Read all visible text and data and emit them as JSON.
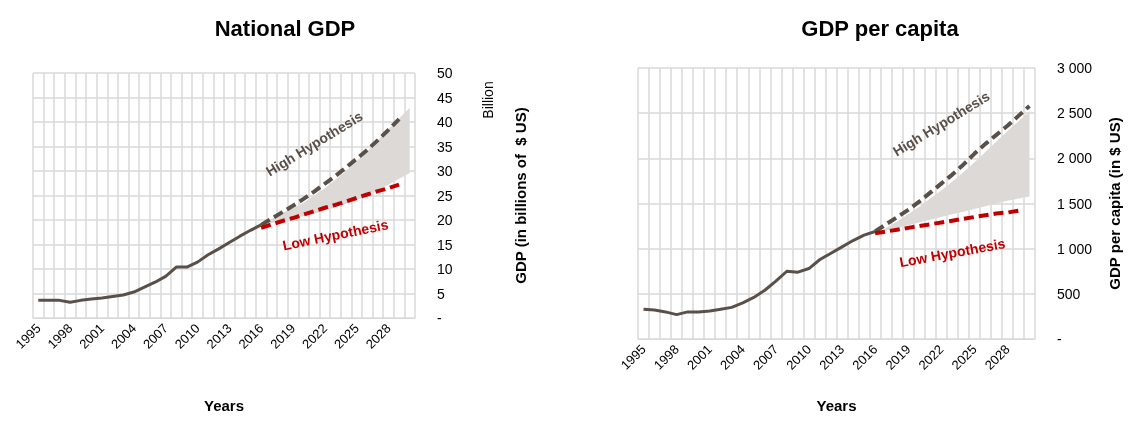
{
  "chart_data": [
    {
      "type": "line",
      "title": "National GDP",
      "xlabel": "Years",
      "ylabel": "GDP (in billions of  $ US)",
      "annotations": [
        "Billion"
      ],
      "categories": [
        "1995",
        null,
        null,
        "1998",
        null,
        null,
        "2001",
        null,
        null,
        "2004",
        null,
        null,
        "2007",
        null,
        null,
        "2010",
        null,
        null,
        "2013",
        null,
        null,
        "2016",
        null,
        null,
        "2019",
        null,
        null,
        "2022",
        null,
        null,
        "2025",
        null,
        null,
        "2028",
        null,
        null
      ],
      "ylim": [
        0,
        50
      ],
      "yticks": [
        {
          "value": 0,
          "label": "-"
        },
        5,
        10,
        15,
        20,
        25,
        30,
        35,
        40,
        45,
        50
      ],
      "grid": true,
      "legend": false,
      "marker": "none",
      "series": [
        {
          "type": "area",
          "color": "#dcd9d6",
          "values": [
            null,
            null,
            null,
            null,
            null,
            null,
            null,
            null,
            null,
            null,
            null,
            null,
            null,
            null,
            null,
            null,
            null,
            null,
            null,
            null,
            null,
            null,
            null,
            null,
            null,
            null,
            null,
            null,
            null,
            null,
            null,
            null,
            null,
            null,
            null,
            null
          ],
          "lower": [
            null,
            null,
            null,
            null,
            null,
            null,
            null,
            null,
            null,
            null,
            null,
            null,
            null,
            null,
            null,
            null,
            null,
            null,
            null,
            null,
            null,
            19,
            19.4,
            19.9,
            20.3,
            20.8,
            21.3,
            21.9,
            22.6,
            23.3,
            24.1,
            25,
            26.1,
            27.2,
            28.4,
            29.6
          ],
          "upper": [
            null,
            null,
            null,
            null,
            null,
            null,
            null,
            null,
            null,
            null,
            null,
            null,
            null,
            null,
            null,
            null,
            null,
            null,
            null,
            null,
            null,
            19,
            20.2,
            21.5,
            22.4,
            23.5,
            25,
            26.5,
            28.2,
            30,
            32,
            34,
            36.2,
            38.5,
            40.7,
            42.9
          ]
        },
        {
          "color": "#595049",
          "line_style": "solid",
          "values": [
            3.6,
            3.6,
            3.6,
            3.2,
            3.6,
            3.9,
            4.1,
            4.4,
            4.7,
            5.3,
            6.3,
            7.3,
            8.5,
            10.4,
            10.4,
            11.4,
            12.9,
            14.1,
            15.4,
            16.7,
            17.9,
            19,
            null,
            null,
            null,
            null,
            null,
            null,
            null,
            null,
            null,
            null,
            null,
            null,
            null,
            null
          ]
        },
        {
          "name": "High Hypothesis",
          "color": "#595049",
          "line_style": "dashed",
          "values": [
            null,
            null,
            null,
            null,
            null,
            null,
            null,
            null,
            null,
            null,
            null,
            null,
            null,
            null,
            null,
            null,
            null,
            null,
            null,
            null,
            null,
            19,
            20.3,
            21.6,
            22.9,
            24.3,
            25.8,
            27.4,
            29,
            30.7,
            32.5,
            34.3,
            36.3,
            38.4,
            40.6,
            null
          ]
        },
        {
          "name": "Low Hypothesis",
          "color": "#c00000",
          "line_style": "dashed",
          "values": [
            null,
            null,
            null,
            null,
            null,
            null,
            null,
            null,
            null,
            null,
            null,
            null,
            null,
            null,
            null,
            null,
            null,
            null,
            null,
            null,
            null,
            18.4,
            19.1,
            19.8,
            20.4,
            21.1,
            21.8,
            22.5,
            23.1,
            23.8,
            24.5,
            25.2,
            25.9,
            26.5,
            27.2,
            null
          ]
        }
      ]
    },
    {
      "type": "line",
      "title": "GDP per capita",
      "xlabel": "Years",
      "ylabel": "GDP per capita (in $ US)",
      "categories": [
        "1995",
        null,
        null,
        "1998",
        null,
        null,
        "2001",
        null,
        null,
        "2004",
        null,
        null,
        "2007",
        null,
        null,
        "2010",
        null,
        null,
        "2013",
        null,
        null,
        "2016",
        null,
        null,
        "2019",
        null,
        null,
        "2022",
        null,
        null,
        "2025",
        null,
        null,
        "2028",
        null,
        null
      ],
      "ylim": [
        0,
        3000
      ],
      "yticks": [
        {
          "value": 0,
          "label": "-"
        },
        {
          "value": 500,
          "label": "500"
        },
        {
          "value": 1000,
          "label": "1 000"
        },
        {
          "value": 1500,
          "label": "1 500"
        },
        {
          "value": 2000,
          "label": "2 000"
        },
        {
          "value": 2500,
          "label": "2 500"
        },
        {
          "value": 3000,
          "label": "3 000"
        }
      ],
      "grid": true,
      "legend": false,
      "marker": "none",
      "series": [
        {
          "type": "area",
          "color": "#dcd9d6",
          "values": [
            null,
            null,
            null,
            null,
            null,
            null,
            null,
            null,
            null,
            null,
            null,
            null,
            null,
            null,
            null,
            null,
            null,
            null,
            null,
            null,
            null,
            null,
            null,
            null,
            null,
            null,
            null,
            null,
            null,
            null,
            null,
            null,
            null,
            null,
            null,
            null
          ],
          "lower": [
            null,
            null,
            null,
            null,
            null,
            null,
            null,
            null,
            null,
            null,
            null,
            null,
            null,
            null,
            null,
            null,
            null,
            null,
            null,
            null,
            null,
            1170,
            1200,
            1230,
            1260,
            1290,
            1320,
            1350,
            1380,
            1410,
            1440,
            1470,
            1500,
            1530,
            1555,
            1578
          ],
          "upper": [
            null,
            null,
            null,
            null,
            null,
            null,
            null,
            null,
            null,
            null,
            null,
            null,
            null,
            null,
            null,
            null,
            null,
            null,
            null,
            null,
            null,
            1170,
            1230,
            1300,
            1380,
            1465,
            1555,
            1645,
            1740,
            1845,
            1955,
            2070,
            2185,
            2300,
            2410,
            2520
          ]
        },
        {
          "color": "#595049",
          "line_style": "solid",
          "values": [
            330,
            320,
            300,
            270,
            300,
            300,
            310,
            330,
            350,
            400,
            460,
            540,
            640,
            750,
            740,
            780,
            880,
            950,
            1020,
            1090,
            1150,
            1190,
            null,
            null,
            null,
            null,
            null,
            null,
            null,
            null,
            null,
            null,
            null,
            null,
            null,
            null
          ]
        },
        {
          "name": "High Hypothesis",
          "color": "#595049",
          "line_style": "dashed",
          "values": [
            null,
            null,
            null,
            null,
            null,
            null,
            null,
            null,
            null,
            null,
            null,
            null,
            null,
            null,
            null,
            null,
            null,
            null,
            null,
            null,
            null,
            1190,
            1270,
            1350,
            1430,
            1520,
            1620,
            1720,
            1820,
            1930,
            2050,
            2160,
            2260,
            2360,
            2470,
            2580
          ]
        },
        {
          "name": "Low Hypothesis",
          "color": "#c00000",
          "line_style": "dashed",
          "values": [
            null,
            null,
            null,
            null,
            null,
            null,
            null,
            null,
            null,
            null,
            null,
            null,
            null,
            null,
            null,
            null,
            null,
            null,
            null,
            null,
            null,
            1170,
            1190,
            1210,
            1230,
            1250,
            1270,
            1290,
            1310,
            1330,
            1350,
            1370,
            1390,
            1400,
            1420,
            null
          ]
        }
      ]
    }
  ]
}
